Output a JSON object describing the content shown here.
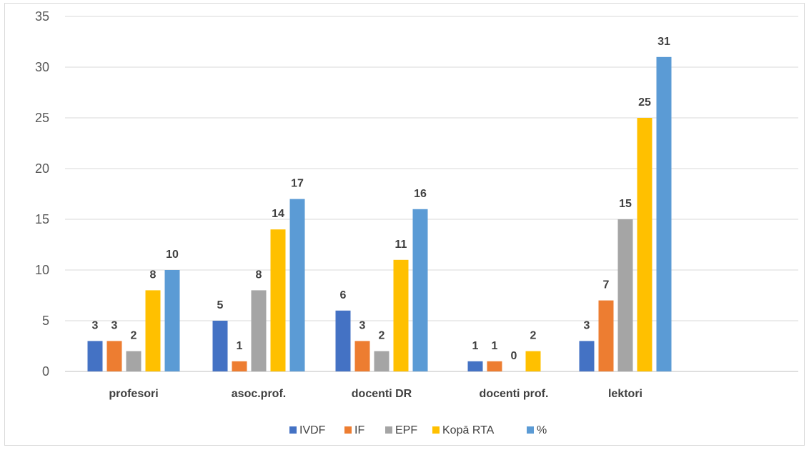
{
  "chart_data": {
    "type": "bar",
    "title": "",
    "xlabel": "",
    "ylabel": "",
    "categories": [
      "profesori",
      "asoc.prof.",
      "docenti DR",
      "docenti prof.",
      "lektori"
    ],
    "ylim": [
      0,
      35
    ],
    "yticks": [
      "0",
      "5",
      "10",
      "15",
      "20",
      "25",
      "30",
      "35"
    ],
    "grid": true,
    "legend_position": "bottom",
    "series": [
      {
        "name": "IVDF",
        "color": "#4472C4",
        "values": [
          3,
          5,
          6,
          1,
          3
        ]
      },
      {
        "name": "IF",
        "color": "#ED7D31",
        "values": [
          3,
          1,
          3,
          1,
          7
        ]
      },
      {
        "name": "EPF",
        "color": "#A5A5A5",
        "values": [
          2,
          8,
          2,
          0,
          15
        ]
      },
      {
        "name": "Kopā RTA",
        "color": "#FFC000",
        "values": [
          8,
          14,
          11,
          2,
          25
        ]
      },
      {
        "name": "%",
        "color": "#5B9BD5",
        "values": [
          10,
          17,
          16,
          null,
          31
        ]
      }
    ]
  }
}
